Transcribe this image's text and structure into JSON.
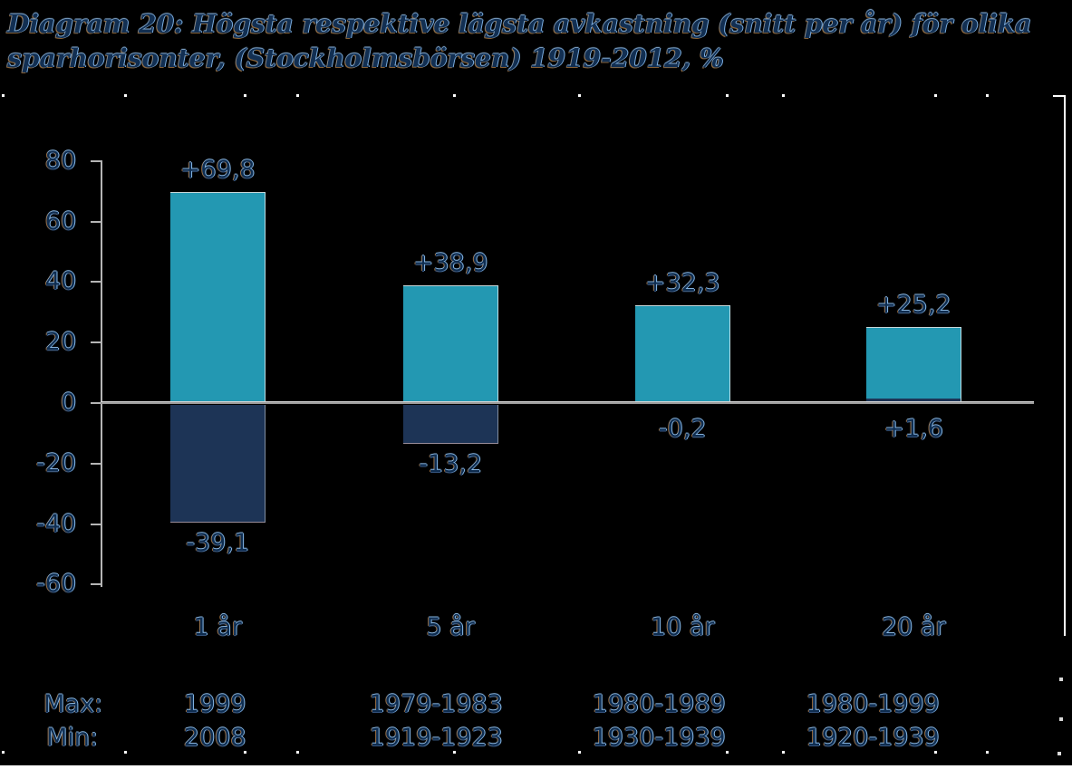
{
  "title": {
    "line1": "Diagram 20: Högsta respektive lägsta avkastning (snitt per år) för olika",
    "line2": "sparhorisonter, (Stockholmsbörsen) 1919-2012, %"
  },
  "chart_data": {
    "type": "bar",
    "title": "Diagram 20: Högsta respektive lägsta avkastning (snitt per år) för olika sparhorisonter, (Stockholmsbörsen) 1919-2012, %",
    "categories": [
      "1 år",
      "5 år",
      "10 år",
      "20 år"
    ],
    "series": [
      {
        "name": "Max",
        "values": [
          69.8,
          38.9,
          32.3,
          25.2
        ],
        "labels": [
          "+69,8",
          "+38,9",
          "+32,3",
          "+25,2"
        ],
        "color": "#2398b2"
      },
      {
        "name": "Min",
        "values": [
          -39.1,
          -13.2,
          -0.2,
          1.6
        ],
        "labels": [
          "-39,1",
          "-13,2",
          "-0,2",
          "+1,6"
        ],
        "color": "#1d3456"
      }
    ],
    "ylim": [
      -60,
      80
    ],
    "yticks": [
      80,
      60,
      40,
      20,
      0,
      -20,
      -40,
      -60
    ],
    "ytick_labels": [
      "80",
      "60",
      "40",
      "20",
      "0",
      "-20",
      "-40",
      "-60"
    ],
    "grid": "off",
    "legend": "none",
    "max_row": {
      "label": "Max:",
      "values": [
        "1999",
        "1979-1983",
        "1980-1989",
        "1980-1999"
      ]
    },
    "min_row": {
      "label": "Min:",
      "values": [
        "2008",
        "1919-1923",
        "1930-1939",
        "1920-1939"
      ]
    }
  },
  "colors": {
    "background": "#000000",
    "bar_max": "#2398b2",
    "bar_min": "#1d3456",
    "axis": "#b5b5b5",
    "zero_line": "#9d9d9d",
    "text_core": "#0f2d50",
    "page_edge": "#ffffff"
  }
}
